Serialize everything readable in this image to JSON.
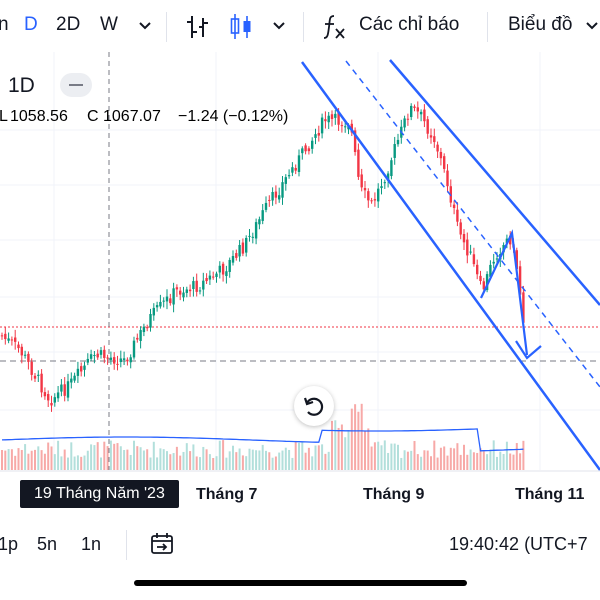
{
  "toolbar": {
    "range_partial": "n",
    "interval_day": "D",
    "interval_2d": "2D",
    "interval_week": "W",
    "indicators_label": "Các chỉ báo",
    "chart_type_label": "Biểu đồ",
    "icons": [
      "chevron-down-icon",
      "bar-style-icon",
      "candle-style-icon",
      "fx-icon"
    ],
    "accent": "#2962ff"
  },
  "legend": {
    "period": "1D",
    "low_label": "L",
    "low_value": "1058.56",
    "close_label": "C",
    "close_value": "1067.07",
    "change": "−1.24 (−0.12%)",
    "value_color": "#f23645"
  },
  "chart": {
    "x_labels": [
      "Tháng 7",
      "Tháng 9",
      "Tháng 11"
    ],
    "crosshair_date": "19 Tháng Năm '23",
    "colors": {
      "up": "#089981",
      "down": "#f23645",
      "volume_ma": "#2962ff",
      "channel": "#2962ff"
    }
  },
  "bottombar": {
    "range_1p": "1p",
    "range_5n": "5n",
    "range_1n": "1n",
    "clock": "19:40:42 (UTC+7"
  },
  "icons": [
    "reset-icon",
    "date-range-icon"
  ]
}
